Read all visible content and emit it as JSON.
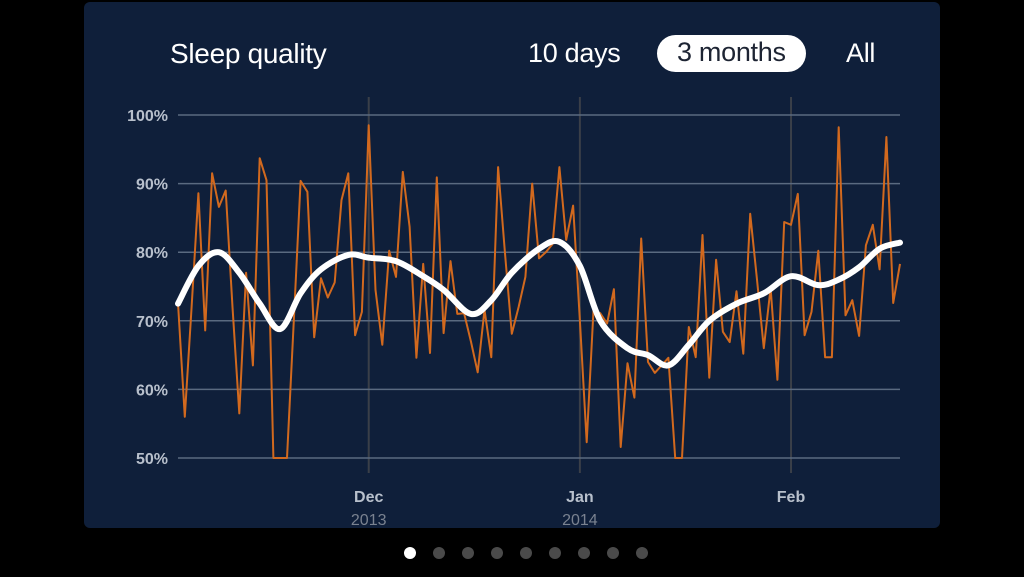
{
  "header": {
    "title": "Sleep quality",
    "tabs": [
      {
        "label": "10 days",
        "active": false
      },
      {
        "label": "3 months",
        "active": true
      },
      {
        "label": "All",
        "active": false
      }
    ]
  },
  "pager": {
    "count": 9,
    "active_index": 0
  },
  "colors": {
    "background": "#0f1f3a",
    "daily": "#d2691e",
    "trend": "#ffffff",
    "grid": "#5a6a80",
    "month_line": "#3a3f48",
    "axis_label": "#b8c0cc",
    "year_label": "#7a8290"
  },
  "chart_data": {
    "type": "line",
    "title": "Sleep quality",
    "xlabel": "",
    "ylabel": "",
    "ylim": [
      50,
      100
    ],
    "xlim": [
      "2013-11-03",
      "2014-02-17"
    ],
    "grid": true,
    "y_ticks": [
      {
        "value": 100,
        "label": "100%"
      },
      {
        "value": 90,
        "label": "90%"
      },
      {
        "value": 80,
        "label": "80%"
      },
      {
        "value": 70,
        "label": "70%"
      },
      {
        "value": 60,
        "label": "60%"
      },
      {
        "value": 50,
        "label": "50%"
      }
    ],
    "x_ticks": [
      {
        "date": "2013-12-01",
        "label": "Dec",
        "sublabel": "2013"
      },
      {
        "date": "2014-01-01",
        "label": "Jan",
        "sublabel": "2014"
      },
      {
        "date": "2014-02-01",
        "label": "Feb",
        "sublabel": ""
      }
    ],
    "series": [
      {
        "style": "daily",
        "x": [
          "2013-11-03",
          "2013-11-04",
          "2013-11-05",
          "2013-11-06",
          "2013-11-07",
          "2013-11-08",
          "2013-11-09",
          "2013-11-10",
          "2013-11-11",
          "2013-11-12",
          "2013-11-13",
          "2013-11-14",
          "2013-11-15",
          "2013-11-16",
          "2013-11-17",
          "2013-11-18",
          "2013-11-19",
          "2013-11-20",
          "2013-11-21",
          "2013-11-22",
          "2013-11-23",
          "2013-11-24",
          "2013-11-25",
          "2013-11-26",
          "2013-11-27",
          "2013-11-28",
          "2013-11-29",
          "2013-11-30",
          "2013-12-01",
          "2013-12-02",
          "2013-12-03",
          "2013-12-04",
          "2013-12-05",
          "2013-12-06",
          "2013-12-07",
          "2013-12-08",
          "2013-12-09",
          "2013-12-10",
          "2013-12-11",
          "2013-12-12",
          "2013-12-13",
          "2013-12-14",
          "2013-12-15",
          "2013-12-16",
          "2013-12-17",
          "2013-12-18",
          "2013-12-19",
          "2013-12-20",
          "2013-12-21",
          "2013-12-22",
          "2013-12-23",
          "2013-12-24",
          "2013-12-25",
          "2013-12-26",
          "2013-12-27",
          "2013-12-28",
          "2013-12-29",
          "2013-12-30",
          "2013-12-31",
          "2014-01-01",
          "2014-01-02",
          "2014-01-03",
          "2014-01-04",
          "2014-01-05",
          "2014-01-06",
          "2014-01-07",
          "2014-01-08",
          "2014-01-09",
          "2014-01-10",
          "2014-01-11",
          "2014-01-12",
          "2014-01-13",
          "2014-01-14",
          "2014-01-15",
          "2014-01-16",
          "2014-01-17",
          "2014-01-18",
          "2014-01-19",
          "2014-01-20",
          "2014-01-21",
          "2014-01-22",
          "2014-01-23",
          "2014-01-24",
          "2014-01-25",
          "2014-01-26",
          "2014-01-27",
          "2014-01-28",
          "2014-01-29",
          "2014-01-30",
          "2014-01-31",
          "2014-02-01",
          "2014-02-02",
          "2014-02-03",
          "2014-02-04",
          "2014-02-05",
          "2014-02-06",
          "2014-02-07",
          "2014-02-08",
          "2014-02-09",
          "2014-02-10",
          "2014-02-11",
          "2014-02-12",
          "2014-02-13",
          "2014-02-14",
          "2014-02-15",
          "2014-02-16",
          "2014-02-17"
        ],
        "values": [
          72.6,
          56,
          72,
          88.6,
          68.6,
          91.5,
          86.6,
          89,
          72,
          56.5,
          77,
          63.5,
          93.7,
          90.5,
          50,
          50,
          50,
          70,
          90.4,
          88.8,
          67.6,
          76.2,
          73.4,
          75.6,
          87.6,
          91.5,
          67.9,
          71.3,
          98.5,
          74.5,
          66.5,
          80.2,
          76.4,
          91.7,
          83.7,
          64.6,
          78.3,
          65.3,
          90.9,
          68.2,
          78.7,
          71,
          71.1,
          67,
          62.5,
          71.6,
          64.7,
          92.4,
          80,
          68.1,
          72,
          76.4,
          90,
          79.1,
          80,
          81.2,
          92.4,
          81.8,
          86.8,
          70,
          52.3,
          71.6,
          71.1,
          69.6,
          74.6,
          51.6,
          63.8,
          58.8,
          82,
          64,
          62.4,
          63.5,
          64.6,
          50,
          50,
          69.1,
          64.7,
          82.5,
          61.7,
          78.9,
          68.4,
          66.9,
          74.3,
          65.2,
          85.6,
          76,
          66,
          74.8,
          61.4,
          84.4,
          84,
          88.5,
          67.9,
          71.3,
          80.2,
          64.7,
          64.7,
          98.2,
          70.8,
          73,
          67.8,
          81,
          84,
          77.5,
          96.8,
          72.6,
          78.3
        ]
      },
      {
        "style": "trend",
        "x": [
          "2013-11-03",
          "2013-11-06",
          "2013-11-09",
          "2013-11-12",
          "2013-11-15",
          "2013-11-18",
          "2013-11-21",
          "2013-11-24",
          "2013-11-28",
          "2013-12-01",
          "2013-12-05",
          "2013-12-09",
          "2013-12-12",
          "2013-12-16",
          "2013-12-19",
          "2013-12-22",
          "2013-12-26",
          "2013-12-29",
          "2014-01-01",
          "2014-01-04",
          "2014-01-08",
          "2014-01-11",
          "2014-01-14",
          "2014-01-17",
          "2014-01-20",
          "2014-01-24",
          "2014-01-28",
          "2014-02-01",
          "2014-02-05",
          "2014-02-08",
          "2014-02-11",
          "2014-02-14",
          "2014-02-17"
        ],
        "values": [
          72.5,
          78,
          80,
          77,
          72.5,
          68.8,
          74,
          77.5,
          79.6,
          79.2,
          78.7,
          76.5,
          74.5,
          71,
          73,
          77,
          80.5,
          81.5,
          78,
          70,
          66,
          65,
          63.5,
          66.5,
          70,
          72.5,
          74,
          76.5,
          75.2,
          76,
          77.8,
          80.5,
          81.4
        ]
      }
    ]
  }
}
